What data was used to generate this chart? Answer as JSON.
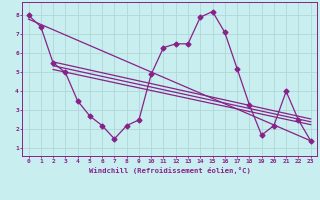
{
  "x": [
    0,
    1,
    2,
    3,
    4,
    5,
    6,
    7,
    8,
    9,
    10,
    11,
    12,
    13,
    14,
    15,
    16,
    17,
    18,
    19,
    20,
    21,
    22,
    23
  ],
  "y_main": [
    8.0,
    7.4,
    5.5,
    5.0,
    3.5,
    2.7,
    2.2,
    1.5,
    2.2,
    2.5,
    4.9,
    6.3,
    6.5,
    6.5,
    7.9,
    8.2,
    7.1,
    5.2,
    3.3,
    1.7,
    2.2,
    4.0,
    2.5,
    1.4
  ],
  "trend_lines": [
    {
      "x0": 0,
      "y0": 7.8,
      "x1": 23,
      "y1": 1.4
    },
    {
      "x0": 2,
      "y0": 5.55,
      "x1": 23,
      "y1": 2.55
    },
    {
      "x0": 2,
      "y0": 5.35,
      "x1": 23,
      "y1": 2.4
    },
    {
      "x0": 2,
      "y0": 5.15,
      "x1": 23,
      "y1": 2.25
    }
  ],
  "color": "#882288",
  "bg_color": "#c8eef0",
  "grid_color": "#b0d8d8",
  "xlabel": "Windchill (Refroidissement éolien,°C)",
  "xlim": [
    -0.5,
    23.5
  ],
  "ylim": [
    0.6,
    8.7
  ],
  "xticks": [
    0,
    1,
    2,
    3,
    4,
    5,
    6,
    7,
    8,
    9,
    10,
    11,
    12,
    13,
    14,
    15,
    16,
    17,
    18,
    19,
    20,
    21,
    22,
    23
  ],
  "yticks": [
    1,
    2,
    3,
    4,
    5,
    6,
    7,
    8
  ],
  "marker": "D",
  "markersize": 2.5,
  "linewidth": 0.9
}
